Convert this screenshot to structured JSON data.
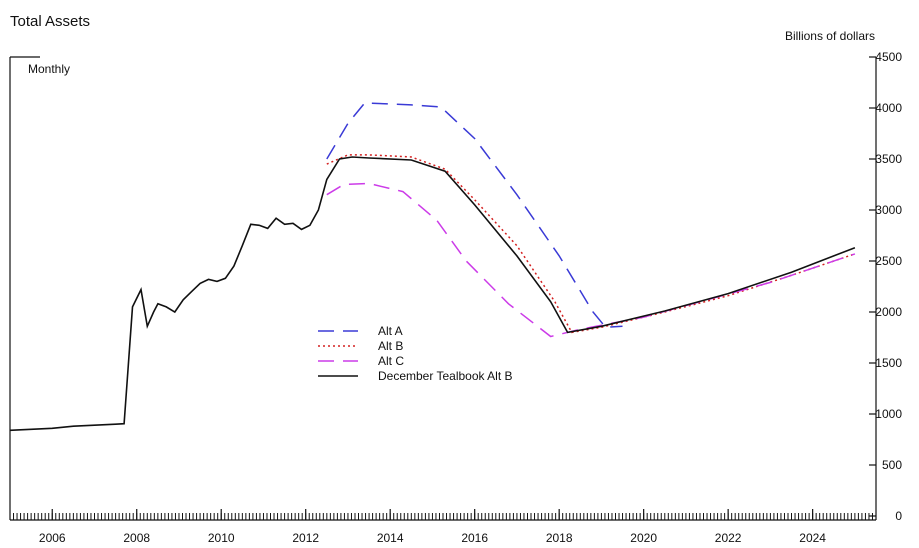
{
  "chart_data": {
    "type": "line",
    "title": "Total Assets",
    "frequency_label": "Monthly",
    "units_label": "Billions of dollars",
    "ylim": [
      0,
      4500
    ],
    "y_ticks": [
      0,
      500,
      1000,
      1500,
      2000,
      2500,
      3000,
      3500,
      4000,
      4500
    ],
    "xlim": [
      2005.5,
      2026.0
    ],
    "x_ticks": [
      2006,
      2008,
      2010,
      2012,
      2014,
      2016,
      2018,
      2020,
      2022,
      2024
    ],
    "grid": false,
    "legend_position": "center-left",
    "series": [
      {
        "name": "Alt A",
        "color": "#3a3ad6",
        "style": "long-dash",
        "x": [
          2013.0,
          2013.5,
          2013.9,
          2015.0,
          2015.7,
          2016.5,
          2017.5,
          2018.5,
          2019.3,
          2019.6,
          2020.0
        ],
        "y": [
          3500,
          3850,
          4050,
          4030,
          4010,
          3700,
          3150,
          2550,
          2000,
          1850,
          1860
        ]
      },
      {
        "name": "Alt B",
        "color": "#d42020",
        "style": "dotted",
        "x": [
          2013.0,
          2013.5,
          2014.0,
          2015.0,
          2015.8,
          2016.5,
          2017.5,
          2018.4,
          2018.8,
          2019.5,
          2021.0,
          2022.5,
          2024.0,
          2025.5
        ],
        "y": [
          3450,
          3540,
          3540,
          3520,
          3400,
          3100,
          2650,
          2100,
          1800,
          1850,
          2000,
          2160,
          2360,
          2570
        ]
      },
      {
        "name": "Alt C",
        "color": "#cc3be8",
        "style": "long-dash",
        "x": [
          2013.0,
          2013.4,
          2014.0,
          2014.8,
          2015.6,
          2016.3,
          2017.3,
          2018.3,
          2019.0,
          2020.5,
          2022.0,
          2023.5,
          2025.5
        ],
        "y": [
          3150,
          3250,
          3260,
          3180,
          2900,
          2500,
          2080,
          1760,
          1830,
          1950,
          2120,
          2290,
          2570
        ]
      },
      {
        "name": "December Tealbook Alt B",
        "color": "#111111",
        "style": "solid",
        "x": [
          2005.5,
          2006.0,
          2006.5,
          2007.0,
          2007.5,
          2008.0,
          2008.2,
          2008.4,
          2008.6,
          2008.75,
          2008.9,
          2009.0,
          2009.2,
          2009.4,
          2009.6,
          2009.8,
          2010.0,
          2010.2,
          2010.4,
          2010.6,
          2010.8,
          2011.0,
          2011.2,
          2011.4,
          2011.6,
          2011.8,
          2012.0,
          2012.2,
          2012.4,
          2012.6,
          2012.8,
          2013.0,
          2013.3,
          2013.6,
          2014.0,
          2015.0,
          2015.8,
          2016.5,
          2017.5,
          2018.3,
          2018.7,
          2019.5,
          2021.0,
          2022.5,
          2024.0,
          2025.5
        ],
        "y": [
          840,
          850,
          860,
          880,
          890,
          900,
          905,
          2050,
          2220,
          1860,
          2000,
          2080,
          2050,
          2000,
          2120,
          2200,
          2280,
          2320,
          2300,
          2330,
          2450,
          2650,
          2860,
          2850,
          2820,
          2920,
          2860,
          2870,
          2810,
          2850,
          3000,
          3300,
          3500,
          3520,
          3510,
          3490,
          3380,
          3050,
          2550,
          2100,
          1800,
          1860,
          2010,
          2180,
          2390,
          2630
        ]
      }
    ]
  }
}
